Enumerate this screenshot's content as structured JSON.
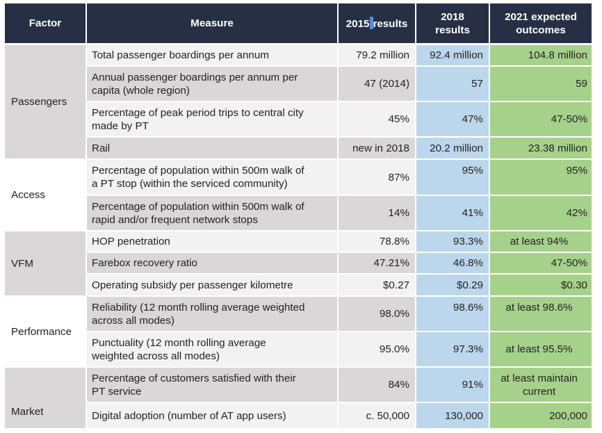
{
  "headers": {
    "factor": "Factor",
    "measure": "Measure",
    "y2015_a": "2015",
    "y2015_b": "results",
    "y2018_a": "2018",
    "y2018_b": "results",
    "y2021_a": "2021 expected",
    "y2021_b": "outcomes"
  },
  "factors": {
    "passengers": "Passengers",
    "access": "Access",
    "vfm": "VFM",
    "performance": "Performance",
    "market": "Market"
  },
  "rows": [
    {
      "measure": "Total passenger boardings per annum",
      "r2015": "79.2 million",
      "r2018": "92.4 million",
      "r2021": "104.8 million"
    },
    {
      "measure_a": "Annual passenger boardings per annum per",
      "measure_b": "capita (whole region)",
      "r2015": "47 (2014)",
      "r2018": "57",
      "r2021": "59"
    },
    {
      "measure_a": "Percentage of peak period trips to central city",
      "measure_b": "made by PT",
      "r2015": "45%",
      "r2018": "47%",
      "r2021": "47-50%"
    },
    {
      "measure": "Rail",
      "r2015": "new in 2018",
      "r2018": "20.2 million",
      "r2021": "23.38 million"
    },
    {
      "measure_a": "Percentage of population within 500m walk of",
      "measure_b": "a PT stop (within the serviced community)",
      "r2015": "87%",
      "r2018": "95%",
      "r2021": "95%"
    },
    {
      "measure_a": "Percentage of population within 500m walk of",
      "measure_b": "rapid and/or frequent network stops",
      "r2015": "14%",
      "r2018": "41%",
      "r2021": "42%"
    },
    {
      "measure": "HOP penetration",
      "r2015": "78.8%",
      "r2018": "93.3%",
      "r2021": "at least 94%"
    },
    {
      "measure": "Farebox recovery ratio",
      "r2015": "47.21%",
      "r2018": "46.8%",
      "r2021": "47-50%"
    },
    {
      "measure": "Operating subsidy per passenger kilometre",
      "r2015": "$0.27",
      "r2018": "$0.29",
      "r2021": "$0.30"
    },
    {
      "measure_a": "Reliability (12 month rolling average weighted",
      "measure_b": "across all modes)",
      "r2015": "98.0%",
      "r2018": "98.6%",
      "r2021": "at least 98.6%"
    },
    {
      "measure_a": "Punctuality (12 month rolling average",
      "measure_b": "weighted across all modes)",
      "r2015": "95.0%",
      "r2018": "97.3%",
      "r2021": "at least 95.5%"
    },
    {
      "measure_a": "Percentage of customers satisfied with their",
      "measure_b": "PT service",
      "r2015": "84%",
      "r2018": "91%",
      "r2021_a": "at least maintain",
      "r2021_b": "current"
    },
    {
      "measure": "Digital adoption (number of AT app users)",
      "r2015": "c. 50,000",
      "r2018": "130,000",
      "r2021": "200,000"
    }
  ],
  "colors": {
    "header_bg": "#262f43",
    "grey_row": "#d9d7d7",
    "light_row": "#f2f2f2",
    "col_2018": "#bcd6ec",
    "col_2021": "#a6d18a"
  }
}
